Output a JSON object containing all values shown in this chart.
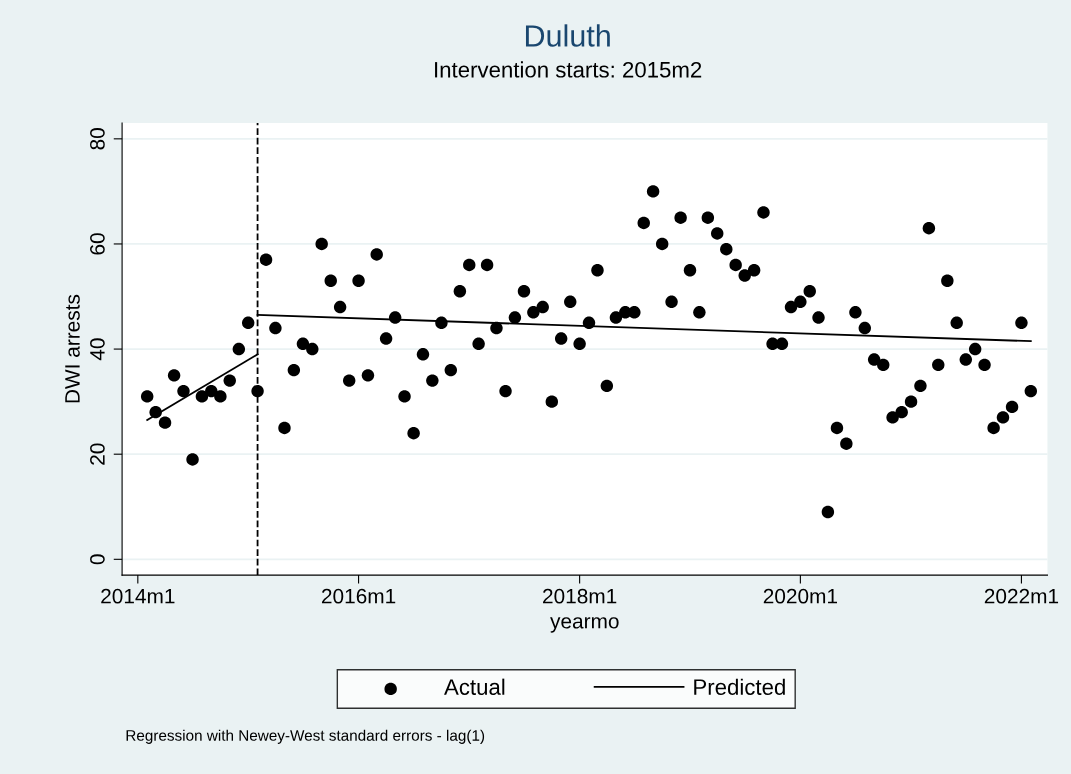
{
  "chart_data": {
    "type": "scatter",
    "title": "Duluth",
    "subtitle": "Intervention starts: 2015m2",
    "xlabel": "yearmo",
    "ylabel": "DWI arrests",
    "annotations": [
      "Regression with Newey-West standard errors - lag(1)"
    ],
    "series": [
      {
        "name": "Actual",
        "color": "#000000",
        "marker": "circle",
        "x": [
          "2014-02",
          "2014-03",
          "2014-04",
          "2014-05",
          "2014-06",
          "2014-07",
          "2014-08",
          "2014-09",
          "2014-10",
          "2014-11",
          "2014-12",
          "2015-01",
          "2015-02",
          "2015-03",
          "2015-04",
          "2015-05",
          "2015-06",
          "2015-07",
          "2015-08",
          "2015-09",
          "2015-10",
          "2015-11",
          "2015-12",
          "2016-01",
          "2016-02",
          "2016-03",
          "2016-04",
          "2016-05",
          "2016-06",
          "2016-07",
          "2016-08",
          "2016-09",
          "2016-10",
          "2016-11",
          "2016-12",
          "2017-01",
          "2017-02",
          "2017-03",
          "2017-04",
          "2017-05",
          "2017-06",
          "2017-07",
          "2017-08",
          "2017-09",
          "2017-10",
          "2017-11",
          "2017-12",
          "2018-01",
          "2018-02",
          "2018-03",
          "2018-04",
          "2018-05",
          "2018-06",
          "2018-07",
          "2018-08",
          "2018-09",
          "2018-10",
          "2018-11",
          "2018-12",
          "2019-01",
          "2019-02",
          "2019-03",
          "2019-04",
          "2019-05",
          "2019-06",
          "2019-07",
          "2019-08",
          "2019-09",
          "2019-10",
          "2019-11",
          "2019-12",
          "2020-01",
          "2020-02",
          "2020-03",
          "2020-04",
          "2020-05",
          "2020-06",
          "2020-07",
          "2020-08",
          "2020-09",
          "2020-10",
          "2020-11",
          "2020-12",
          "2021-01",
          "2021-02",
          "2021-03",
          "2021-04",
          "2021-05",
          "2021-06",
          "2021-07",
          "2021-08",
          "2021-09",
          "2021-10",
          "2021-11",
          "2021-12",
          "2022-01",
          "2022-02"
        ],
        "values": [
          31,
          28,
          26,
          35,
          32,
          19,
          31,
          32,
          31,
          34,
          40,
          45,
          32,
          57,
          44,
          25,
          36,
          41,
          40,
          60,
          53,
          48,
          34,
          53,
          35,
          58,
          42,
          46,
          31,
          24,
          39,
          34,
          45,
          36,
          51,
          56,
          41,
          56,
          44,
          32,
          46,
          51,
          47,
          48,
          30,
          42,
          49,
          41,
          45,
          55,
          33,
          46,
          47,
          47,
          64,
          70,
          60,
          49,
          65,
          55,
          47,
          65,
          62,
          59,
          56,
          54,
          55,
          66,
          41,
          41,
          48,
          49,
          51,
          46,
          9,
          25,
          22,
          47,
          44,
          38,
          37,
          27,
          28,
          30,
          33,
          63,
          37,
          53,
          45,
          38,
          40,
          37,
          25,
          27,
          29,
          45,
          32
        ]
      },
      {
        "name": "Predicted",
        "type": "line",
        "color": "#000000",
        "marker": "none",
        "line_style": "solid",
        "x": [
          "2015-02",
          "2022-02"
        ],
        "values": [
          46.5,
          41.5
        ]
      },
      {
        "type": "line",
        "color": "#000000",
        "marker": "none",
        "line_style": "solid",
        "x": [
          "2014-02",
          "2015-02"
        ],
        "values": [
          26.5,
          39
        ]
      }
    ],
    "xlim": [
      "2013-11-10",
      "2022-03-28"
    ],
    "ylim": [
      -3,
      83
    ],
    "xticks": [
      {
        "value": "2014-01",
        "label": "2014m1"
      },
      {
        "value": "2016-01",
        "label": "2016m1"
      },
      {
        "value": "2018-01",
        "label": "2018m1"
      },
      {
        "value": "2020-01",
        "label": "2020m1"
      },
      {
        "value": "2022-01",
        "label": "2022m1"
      }
    ],
    "yticks": [
      0,
      20,
      40,
      60,
      80
    ],
    "ref_lines": [
      {
        "axis": "x",
        "value": "2015-02",
        "color": "#000000",
        "line_style": "dashed"
      }
    ],
    "grid": "y",
    "legend": "bottom"
  }
}
